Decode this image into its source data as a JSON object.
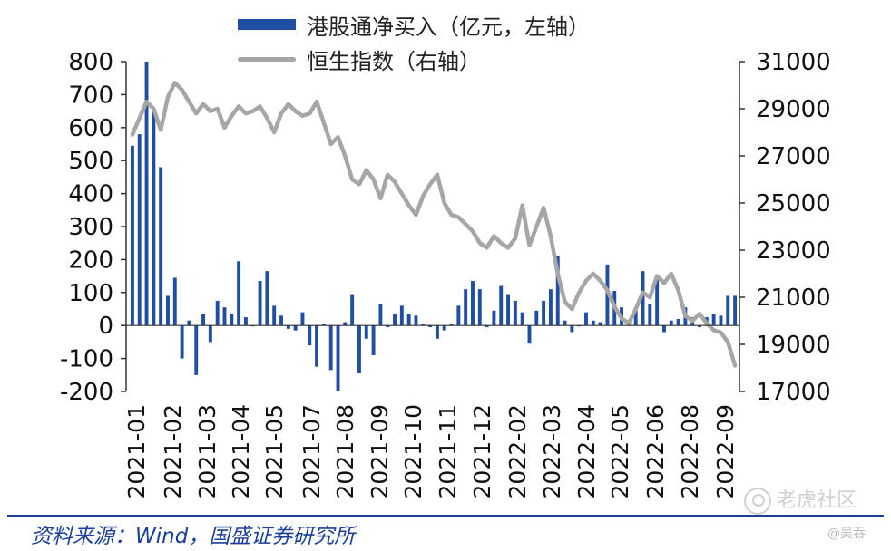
{
  "legend": {
    "bar_label": "港股通净买入（亿元，左轴）",
    "line_label": "恒生指数（右轴）"
  },
  "source": "资料来源：Wind，国盛证券研究所",
  "watermark": "老虎社区",
  "author": "@吴吞",
  "colors": {
    "bar": "#1f4ea3",
    "line": "#a6a6a6",
    "axis": "#333333"
  },
  "chart_data": {
    "type": "bar+line",
    "x_tick_labels": [
      "2021-01",
      "2021-02",
      "2021-03",
      "2021-04",
      "2021-05",
      "2021-07",
      "2021-08",
      "2021-09",
      "2021-10",
      "2021-11",
      "2021-12",
      "2022-02",
      "2022-03",
      "2022-04",
      "2022-05",
      "2022-06",
      "2022-08",
      "2022-09"
    ],
    "left_axis": {
      "ylim": [
        -200,
        800
      ],
      "ticks": [
        800,
        700,
        600,
        500,
        400,
        300,
        200,
        100,
        0,
        -100,
        -200
      ]
    },
    "right_axis": {
      "ylim": [
        17000,
        31000
      ],
      "ticks": [
        31000,
        29000,
        27000,
        25000,
        23000,
        21000,
        19000,
        17000
      ]
    },
    "series": [
      {
        "name": "港股通净买入（亿元，左轴）",
        "kind": "bar",
        "axis": "left",
        "values": [
          545,
          580,
          800,
          660,
          480,
          90,
          145,
          -100,
          15,
          -150,
          35,
          -50,
          75,
          55,
          35,
          195,
          25,
          0,
          135,
          165,
          60,
          30,
          -10,
          -15,
          40,
          -60,
          -125,
          5,
          -135,
          -200,
          10,
          95,
          -145,
          -40,
          -90,
          65,
          -5,
          35,
          60,
          35,
          30,
          5,
          -5,
          -40,
          -15,
          5,
          60,
          110,
          135,
          110,
          -5,
          45,
          120,
          95,
          75,
          40,
          -55,
          45,
          75,
          110,
          210,
          15,
          -20,
          0,
          40,
          15,
          10,
          185,
          105,
          55,
          10,
          55,
          165,
          65,
          140,
          -20,
          15,
          20,
          55,
          25,
          -5,
          25,
          35,
          30,
          90,
          90
        ]
      },
      {
        "name": "恒生指数（右轴）",
        "kind": "line",
        "axis": "right",
        "values": [
          27900,
          28600,
          29300,
          29000,
          28100,
          29500,
          30100,
          29800,
          29300,
          28800,
          29200,
          28900,
          29000,
          28200,
          28700,
          29100,
          28800,
          28900,
          29100,
          28600,
          28000,
          28800,
          29200,
          28900,
          28700,
          28800,
          29300,
          28400,
          27500,
          27800,
          27000,
          26000,
          25800,
          26400,
          26000,
          25200,
          26200,
          25900,
          25400,
          24900,
          24500,
          25300,
          25800,
          26200,
          25000,
          24500,
          24400,
          24100,
          23800,
          23300,
          23100,
          23600,
          23300,
          23100,
          23500,
          24900,
          23200,
          24000,
          24800,
          23600,
          22000,
          20800,
          20500,
          21200,
          21700,
          22000,
          21700,
          21300,
          20600,
          20100,
          19900,
          20500,
          21200,
          21000,
          21900,
          21600,
          22000,
          21300,
          20200,
          20000,
          20300,
          19900,
          19600,
          19500,
          19100,
          18100
        ]
      }
    ],
    "xlabel": "",
    "ylabel": "",
    "grid": false,
    "legend_position": "top"
  }
}
